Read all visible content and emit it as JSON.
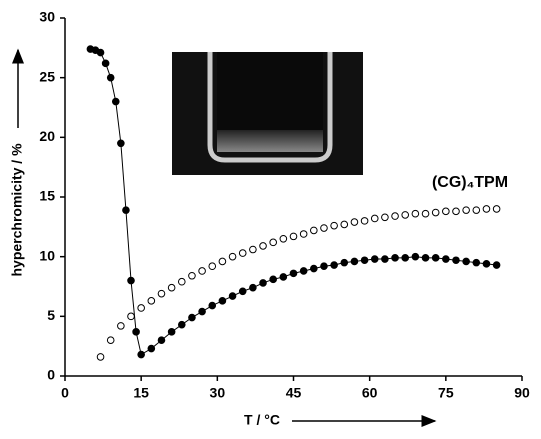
{
  "chart_data": {
    "type": "scatter",
    "ylabel": "hyperchromicity / %",
    "xlabel": "T / °C",
    "annotation": "(CG)₄TPM",
    "xlim": [
      0,
      90
    ],
    "xticks": [
      0,
      15,
      30,
      45,
      60,
      75,
      90
    ],
    "ylim": [
      0,
      30
    ],
    "yticks": [
      0,
      5,
      10,
      15,
      20,
      25,
      30
    ],
    "series": [
      {
        "color": "#000000",
        "filled": true,
        "line": true,
        "x": [
          5,
          6,
          7,
          8,
          9,
          10,
          11,
          12,
          13,
          14,
          15,
          17,
          19,
          21,
          23,
          25,
          27,
          29,
          31,
          33,
          35,
          37,
          39,
          41,
          43,
          45,
          47,
          49,
          51,
          53,
          55,
          57,
          59,
          61,
          63,
          65,
          67,
          69,
          71,
          73,
          75,
          77,
          79,
          81,
          83,
          85
        ],
        "values": [
          27.4,
          27.3,
          27.1,
          26.2,
          25.0,
          23.0,
          19.5,
          13.9,
          8.0,
          3.7,
          1.8,
          2.3,
          3.0,
          3.7,
          4.3,
          4.9,
          5.4,
          5.9,
          6.3,
          6.7,
          7.1,
          7.4,
          7.8,
          8.1,
          8.3,
          8.6,
          8.8,
          9.0,
          9.2,
          9.3,
          9.5,
          9.6,
          9.7,
          9.8,
          9.8,
          9.9,
          9.9,
          10.0,
          9.9,
          9.9,
          9.8,
          9.7,
          9.6,
          9.5,
          9.4,
          9.3
        ]
      },
      {
        "color": "#000000",
        "filled": false,
        "line": false,
        "x": [
          7,
          9,
          11,
          13,
          15,
          17,
          19,
          21,
          23,
          25,
          27,
          29,
          31,
          33,
          35,
          37,
          39,
          41,
          43,
          45,
          47,
          49,
          51,
          53,
          55,
          57,
          59,
          61,
          63,
          65,
          67,
          69,
          71,
          73,
          75,
          77,
          79,
          81,
          83,
          85
        ],
        "values": [
          1.6,
          3.0,
          4.2,
          5.0,
          5.7,
          6.3,
          6.9,
          7.4,
          7.9,
          8.4,
          8.8,
          9.2,
          9.6,
          10.0,
          10.3,
          10.6,
          10.9,
          11.2,
          11.5,
          11.7,
          11.9,
          12.2,
          12.4,
          12.6,
          12.7,
          12.9,
          13.0,
          13.2,
          13.3,
          13.4,
          13.5,
          13.6,
          13.6,
          13.7,
          13.8,
          13.8,
          13.9,
          13.9,
          14.0,
          14.0
        ]
      }
    ]
  }
}
